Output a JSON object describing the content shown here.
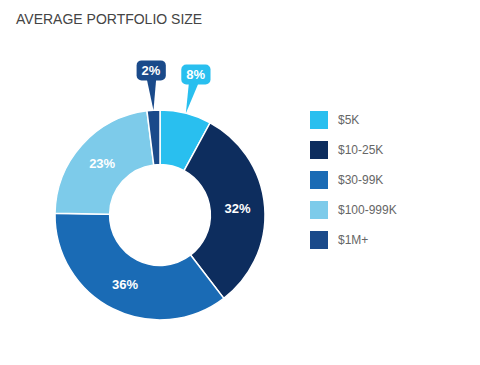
{
  "chart_data": {
    "type": "donut",
    "title": "AVERAGE PORTFOLIO SIZE",
    "categories": [
      "$5K",
      "$10-25K",
      "$30-99K",
      "$100-999K",
      "$1M+"
    ],
    "values": [
      8,
      32,
      36,
      23,
      2
    ],
    "value_labels": [
      "8%",
      "32%",
      "36%",
      "23%",
      "2%"
    ],
    "colors": [
      "#29BFEF",
      "#0D2D5E",
      "#1A6BB5",
      "#7DCBEA",
      "#1A4A8A"
    ],
    "data_labels": true,
    "legend": "right"
  }
}
